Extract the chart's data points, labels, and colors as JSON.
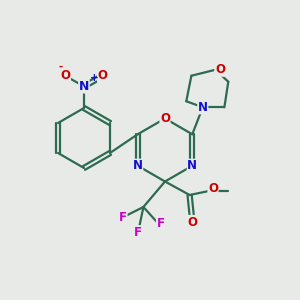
{
  "bg_color": "#e8eae8",
  "bond_color": "#2d6b50",
  "bond_lw": 1.6,
  "atom_colors": {
    "O": "#cc0000",
    "N": "#1111cc",
    "F": "#cc00cc",
    "default": "#2d6b50"
  },
  "font_size": 8.5,
  "title": ""
}
